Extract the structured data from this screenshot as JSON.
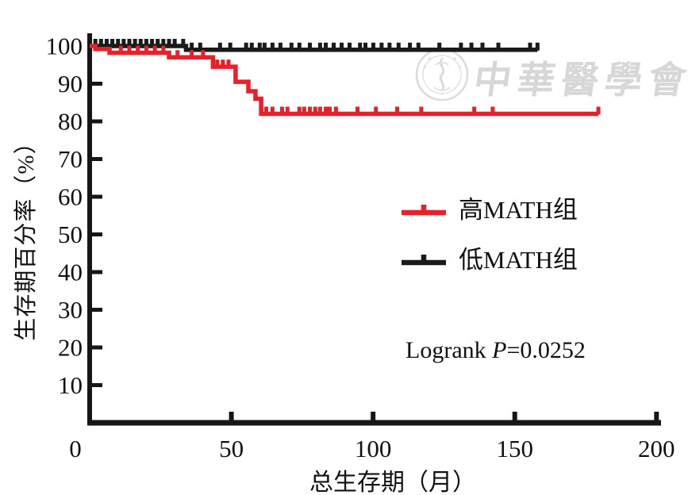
{
  "watermark": {
    "text": "中華醫學會",
    "seal": "chinese-medical-association-seal"
  },
  "annotation": {
    "before": "Logrank ",
    "italic": "P",
    "after": "=0.0252"
  },
  "chart_data": {
    "type": "line",
    "subtype": "kaplan_meier_step",
    "title": "",
    "xlabel": "总生存期（月）",
    "ylabel": "生存期百分率（%）",
    "xlim": [
      0,
      200
    ],
    "ylim": [
      0,
      105
    ],
    "xticks": [
      0,
      50,
      100,
      150,
      200
    ],
    "yticks": [
      10,
      20,
      30,
      40,
      50,
      60,
      70,
      80,
      90,
      100
    ],
    "grid": false,
    "legend_position": "center-right",
    "annotation_text": "Logrank P=0.0252",
    "axis_color": "#161616",
    "series": [
      {
        "name": "高MATH组",
        "color": "#e8202a",
        "steps": [
          [
            0,
            100
          ],
          [
            2,
            99.2
          ],
          [
            7,
            98.2
          ],
          [
            28,
            97
          ],
          [
            43.5,
            94.5
          ],
          [
            51.5,
            90.5
          ],
          [
            56,
            88
          ],
          [
            58.5,
            86
          ],
          [
            60.5,
            82
          ]
        ],
        "end": 179.5,
        "censor_times": [
          11,
          14,
          17,
          20,
          23,
          26,
          31,
          36,
          40,
          45,
          47,
          49,
          62.3,
          64.5,
          67.9,
          69.8,
          74,
          75.7,
          77.7,
          79.6,
          81.3,
          83.3,
          84.7,
          86.9,
          94.5,
          101,
          108.5,
          117,
          135.7,
          142.2,
          179.5
        ]
      },
      {
        "name": "低MATH组",
        "color": "#1a1a1a",
        "steps": [
          [
            0,
            100
          ],
          [
            34,
            99
          ]
        ],
        "end": 158,
        "censor_times": [
          2,
          4,
          6,
          8,
          10,
          12,
          14,
          16,
          18,
          20,
          22,
          24,
          26,
          28,
          30,
          33,
          36,
          39,
          46,
          49.6,
          55.2,
          57.2,
          60,
          61.7,
          64.5,
          67.3,
          71.2,
          74,
          77.7,
          81.3,
          83.3,
          86.1,
          88.9,
          91.7,
          95.4,
          97.3,
          100.1,
          103,
          105.8,
          109,
          113,
          116,
          123.4,
          131,
          134.7,
          138.6,
          144.2,
          155.4,
          158
        ]
      }
    ]
  }
}
